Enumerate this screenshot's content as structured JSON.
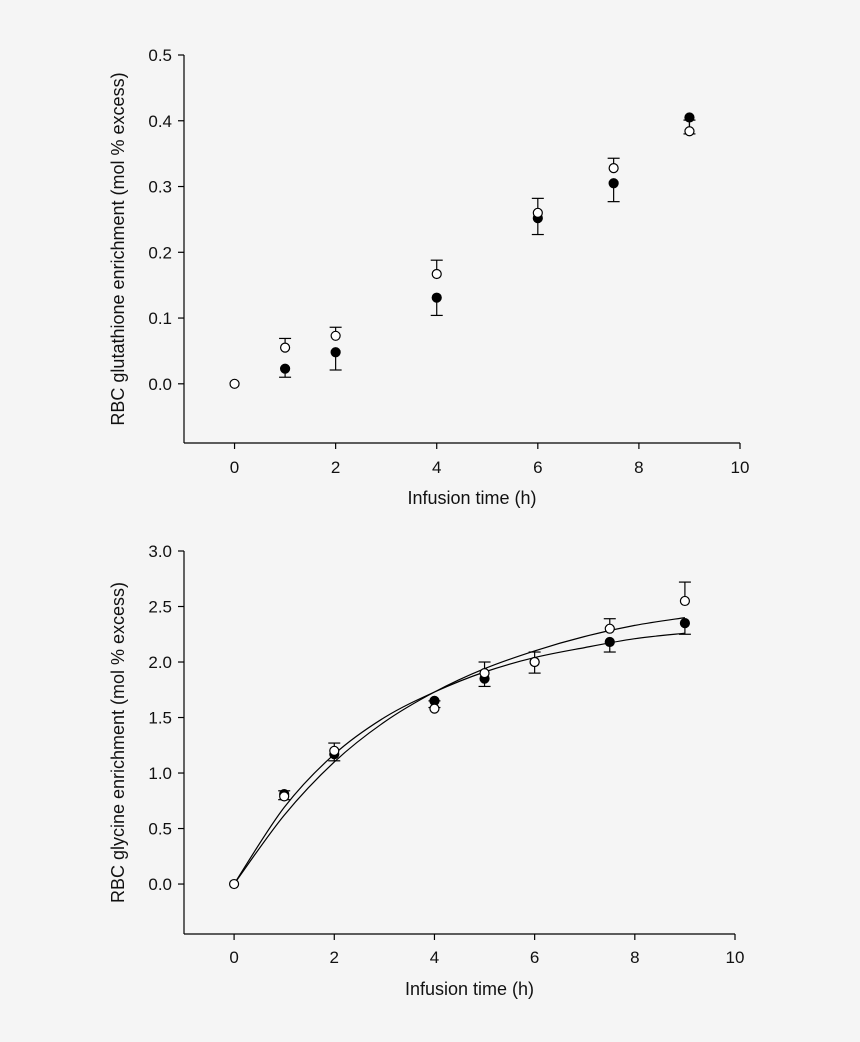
{
  "colors": {
    "background": "#f5f5f5",
    "ink": "#000000",
    "open_marker_fill": "#ffffff"
  },
  "chart_data": [
    {
      "type": "scatter",
      "xlabel": "Infusion time (h)",
      "ylabel": "RBC glutathione enrichment (mol % excess)",
      "xlim": [
        -1,
        10
      ],
      "ylim": [
        -0.09,
        0.5
      ],
      "xticks": [
        "0",
        "2",
        "4",
        "6",
        "8",
        "10"
      ],
      "yticks": [
        "0.0",
        "0.1",
        "0.2",
        "0.3",
        "0.4",
        "0.5"
      ],
      "grid": false,
      "legend": "none",
      "series": [
        {
          "marker": "filled-circle",
          "x": [
            1,
            2,
            4,
            6,
            7.5,
            9
          ],
          "y": [
            0.023,
            0.048,
            0.131,
            0.252,
            0.305,
            0.405
          ],
          "err": [
            0.013,
            0.027,
            0.027,
            0.025,
            0.028,
            0.025
          ]
        },
        {
          "marker": "open-circle",
          "x": [
            0,
            1,
            2,
            4,
            6,
            7.5,
            9
          ],
          "y": [
            0.0,
            0.055,
            0.073,
            0.167,
            0.26,
            0.328,
            0.384
          ],
          "err": [
            0,
            0.014,
            0.013,
            0.021,
            0.022,
            0.015,
            0.017
          ]
        }
      ]
    },
    {
      "type": "scatter",
      "xlabel": "Infusion time (h)",
      "ylabel": "RBC glycine enrichment (mol % excess)",
      "xlim": [
        -1,
        10
      ],
      "ylim": [
        -0.45,
        3.0
      ],
      "xticks": [
        "0",
        "2",
        "4",
        "6",
        "8",
        "10"
      ],
      "yticks": [
        "0.0",
        "0.5",
        "1.0",
        "1.5",
        "2.0",
        "2.5",
        "3.0"
      ],
      "grid": false,
      "legend": "none",
      "series": [
        {
          "marker": "filled-circle",
          "x": [
            1,
            2,
            4,
            5,
            6,
            7.5,
            9
          ],
          "y": [
            0.81,
            1.17,
            1.65,
            1.85,
            2.0,
            2.18,
            2.35
          ],
          "err": [
            0.05,
            0.06,
            0.06,
            0.07,
            0.1,
            0.09,
            0.1
          ],
          "fit": {
            "x": [
              0,
              1,
              2,
              3,
              4,
              5,
              6,
              7,
              8,
              9
            ],
            "y": [
              0.0,
              0.69,
              1.17,
              1.5,
              1.73,
              1.91,
              2.04,
              2.13,
              2.21,
              2.26
            ]
          }
        },
        {
          "marker": "open-circle",
          "x": [
            0,
            1,
            2,
            4,
            5,
            6,
            7.5,
            9
          ],
          "y": [
            0.0,
            0.79,
            1.2,
            1.58,
            1.9,
            2.0,
            2.3,
            2.55
          ],
          "err": [
            0,
            0.05,
            0.07,
            0.07,
            0.1,
            0.09,
            0.09,
            0.17
          ],
          "fit": {
            "x": [
              0,
              1,
              2,
              3,
              4,
              5,
              6,
              7,
              8,
              9
            ],
            "y": [
              0.0,
              0.62,
              1.1,
              1.46,
              1.73,
              1.94,
              2.1,
              2.23,
              2.33,
              2.4
            ]
          }
        }
      ]
    }
  ]
}
